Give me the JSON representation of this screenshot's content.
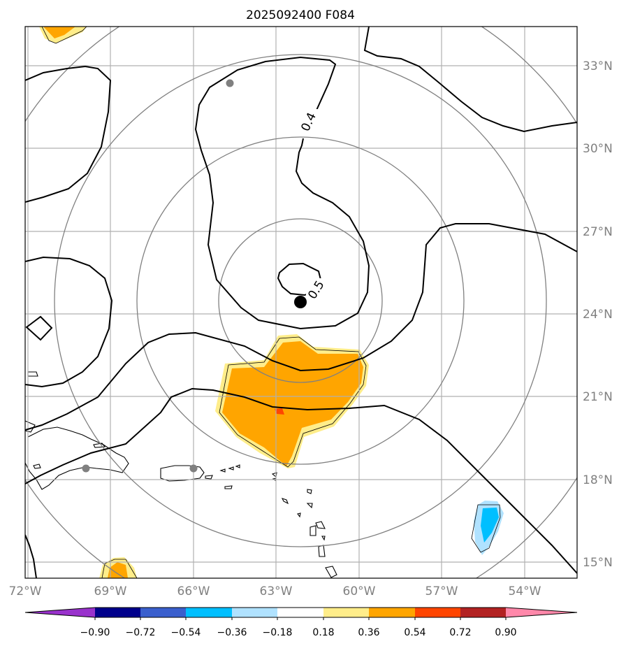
{
  "title": "2025092400 F084",
  "map": {
    "lon_labels": [
      "72°W",
      "69°W",
      "66°W",
      "63°W",
      "60°W",
      "57°W",
      "54°W"
    ],
    "lat_labels": [
      "15°N",
      "18°N",
      "21°N",
      "24°N",
      "27°N",
      "30°N",
      "33°N"
    ],
    "contour_labels": [
      "0.4",
      "0.5"
    ],
    "colors": {
      "land_outline": "#000000",
      "gridline": "#b0b0b0",
      "range_rings": "#808080",
      "contour": "#000000",
      "center_marker": "#000000",
      "station_marker": "#808080"
    }
  },
  "colorbar": {
    "tick_labels": [
      "−0.90",
      "−0.72",
      "−0.54",
      "−0.36",
      "−0.18",
      "0.18",
      "0.36",
      "0.54",
      "0.72",
      "0.90"
    ],
    "colors": [
      "#9932cc",
      "#00008b",
      "#3a5fcd",
      "#00bfff",
      "#b0e2ff",
      "#ffffff",
      "#ffed8a",
      "#ffa500",
      "#ff4500",
      "#b22222",
      "#ff88aa"
    ]
  }
}
